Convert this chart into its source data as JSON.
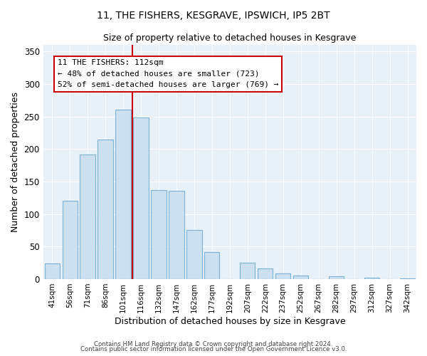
{
  "title": "11, THE FISHERS, KESGRAVE, IPSWICH, IP5 2BT",
  "subtitle": "Size of property relative to detached houses in Kesgrave",
  "xlabel": "Distribution of detached houses by size in Kesgrave",
  "ylabel": "Number of detached properties",
  "bar_color": "#cce0f0",
  "bar_edge_color": "#7ab4d4",
  "background_color": "#e8f0f8",
  "categories": [
    "41sqm",
    "56sqm",
    "71sqm",
    "86sqm",
    "101sqm",
    "116sqm",
    "132sqm",
    "147sqm",
    "162sqm",
    "177sqm",
    "192sqm",
    "207sqm",
    "222sqm",
    "237sqm",
    "252sqm",
    "267sqm",
    "282sqm",
    "297sqm",
    "312sqm",
    "327sqm",
    "342sqm"
  ],
  "values": [
    24,
    120,
    192,
    214,
    260,
    248,
    137,
    136,
    75,
    41,
    0,
    25,
    16,
    9,
    5,
    0,
    4,
    0,
    2,
    0,
    1
  ],
  "vline_color": "#cc0000",
  "annotation_title": "11 THE FISHERS: 112sqm",
  "annotation_line1": "← 48% of detached houses are smaller (723)",
  "annotation_line2": "52% of semi-detached houses are larger (769) →",
  "ylim": [
    0,
    360
  ],
  "yticks": [
    0,
    50,
    100,
    150,
    200,
    250,
    300,
    350
  ],
  "footer1": "Contains HM Land Registry data © Crown copyright and database right 2024.",
  "footer2": "Contains public sector information licensed under the Open Government Licence v3.0."
}
